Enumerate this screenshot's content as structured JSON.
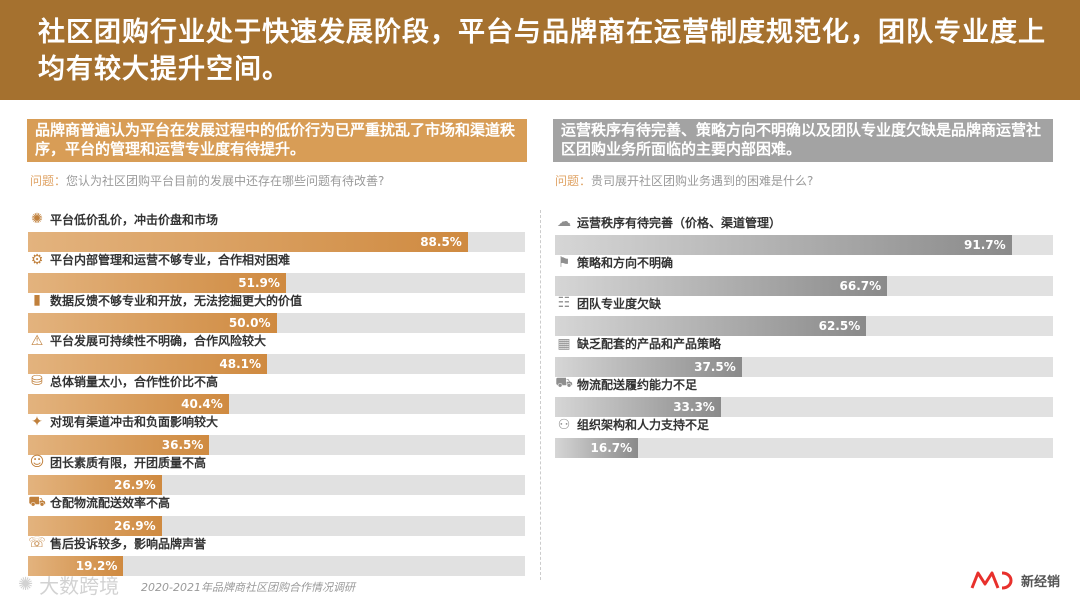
{
  "header": {
    "headline": "社区团购行业处于快速发展阶段，平台与品牌商在运营制度规范化，团队专业度上均有较大提升空间。"
  },
  "left": {
    "caption": "品牌商普遍认为平台在发展过程中的低价行为已严重扰乱了市场和渠道秩序，平台的管理和运营专业度有待提升。",
    "question_label": "问题：",
    "question_text": "您认为社区团购平台目前的发展中还存在哪些问题有待改善?"
  },
  "right": {
    "caption": "运营秩序有待完善、策略方向不明确以及团队专业度欠缺是品牌商运营社区团购业务所面临的主要内部困难。",
    "question_label": "问题：",
    "question_text": "贵司展开社区团购业务遇到的困难是什么?"
  },
  "chart_data": [
    {
      "type": "bar",
      "orientation": "horizontal",
      "title": "您认为社区团购平台目前的发展中还存在哪些问题有待改善?",
      "categories": [
        "平台低价乱价，冲击价盘和市场",
        "平台内部管理和运营不够专业，合作相对困难",
        "数据反馈不够专业和开放，无法挖掘更大的价值",
        "平台发展可持续性不明确，合作风险较大",
        "总体销量太小，合作性价比不高",
        "对现有渠道冲击和负面影响较大",
        "团长素质有限，开团质量不高",
        "仓配物流配送效率不高",
        "售后投诉较多，影响品牌声誉"
      ],
      "values": [
        88.5,
        51.9,
        50.0,
        48.1,
        40.4,
        36.5,
        26.9,
        26.9,
        19.2
      ],
      "value_labels": [
        "88.5%",
        "51.9%",
        "50.0%",
        "48.1%",
        "40.4%",
        "36.5%",
        "26.9%",
        "26.9%",
        "19.2%"
      ],
      "icons": [
        "price-chaos-icon",
        "management-icon",
        "data-icon",
        "risk-icon",
        "sales-volume-icon",
        "channel-impact-icon",
        "leader-icon",
        "logistics-icon",
        "phone-icon"
      ],
      "xlim": [
        0,
        100
      ],
      "color": "#cf8a40"
    },
    {
      "type": "bar",
      "orientation": "horizontal",
      "title": "贵司展开社区团购业务遇到的困难是什么?",
      "categories": [
        "运营秩序有待完善（价格、渠道管理）",
        "策略和方向不明确",
        "团队专业度欠缺",
        "缺乏配套的产品和产品策略",
        "物流配送履约能力不足",
        "组织架构和人力支持不足"
      ],
      "values": [
        91.7,
        66.7,
        62.5,
        37.5,
        33.3,
        16.7
      ],
      "value_labels": [
        "91.7%",
        "66.7%",
        "62.5%",
        "37.5%",
        "33.3%",
        "16.7%"
      ],
      "icons": [
        "operation-order-icon",
        "strategy-icon",
        "team-icon",
        "product-icon",
        "logistics-icon",
        "org-structure-icon"
      ],
      "xlim": [
        0,
        100
      ],
      "color": "#8a8a8a"
    }
  ],
  "footer": {
    "source": "2020-2021年品牌商社区团购合作情况调研",
    "watermark": "大数跨境",
    "brand_name": "新经销"
  },
  "colors": {
    "header_bg": "#a5712f",
    "left_accent": "#d89d56",
    "right_accent": "#a3a3a3"
  }
}
